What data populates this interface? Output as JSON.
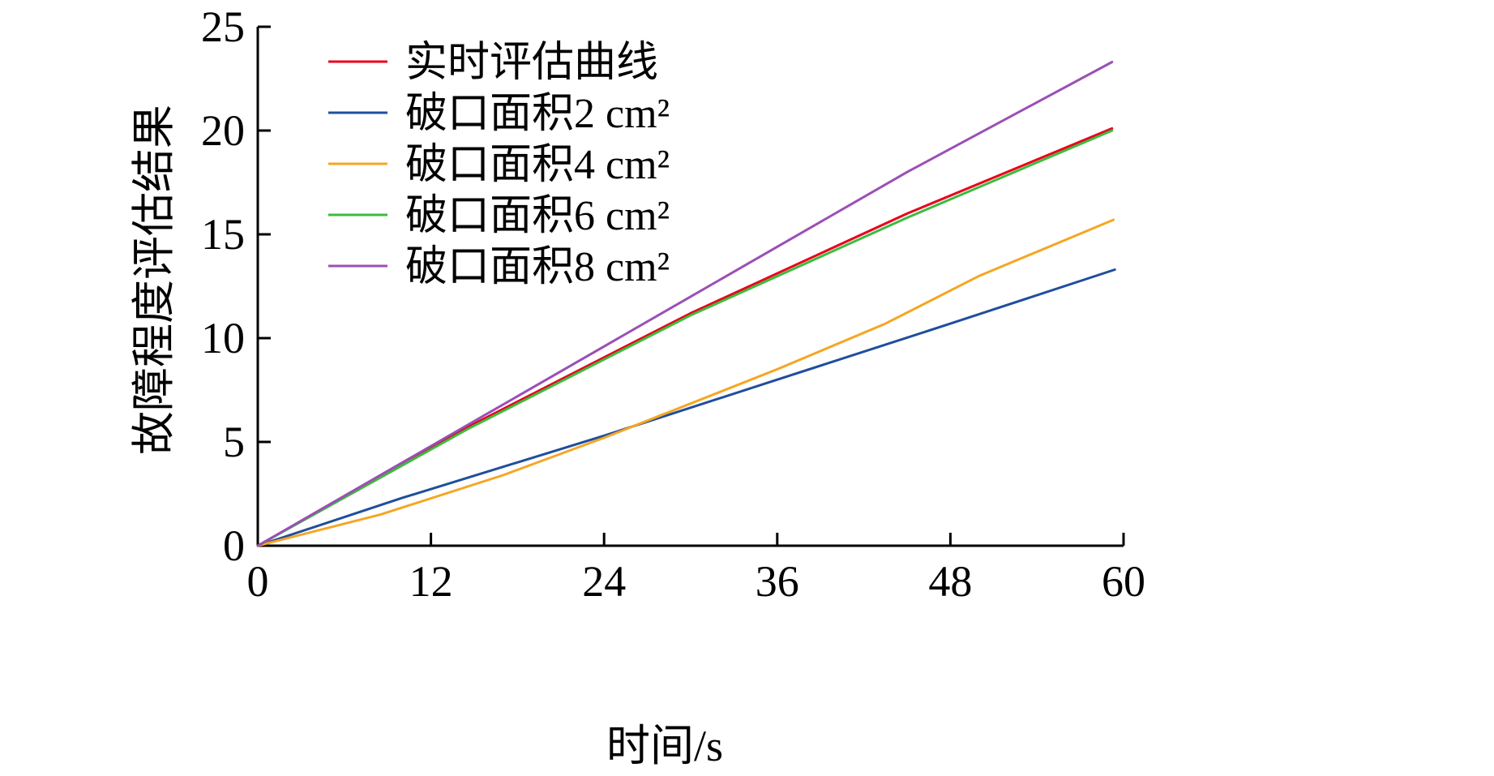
{
  "chart_data": {
    "type": "line",
    "xlabel": "时间/s",
    "ylabel": "故障程度评估结果",
    "xlim": [
      0,
      60
    ],
    "ylim": [
      0,
      25
    ],
    "xticks": [
      0,
      12,
      24,
      36,
      48,
      60
    ],
    "yticks": [
      0,
      5,
      10,
      15,
      20,
      25
    ],
    "grid": false,
    "legend_position": "top-left",
    "series": [
      {
        "name": "实时评估曲线",
        "color": "#e8001c",
        "x": [
          0,
          14.5,
          30,
          45,
          59.2
        ],
        "y": [
          0,
          5.7,
          11.2,
          16.0,
          20.1
        ]
      },
      {
        "name": "破口面积2 cm²",
        "color": "#1f4e9c",
        "x": [
          0,
          10,
          24,
          36,
          48,
          59.4
        ],
        "y": [
          0,
          2.3,
          5.3,
          8.0,
          10.7,
          13.3
        ]
      },
      {
        "name": "破口面积4 cm²",
        "color": "#f5a623",
        "x": [
          0,
          8.5,
          17,
          24,
          28,
          36,
          43.5,
          50,
          59.3
        ],
        "y": [
          0,
          1.5,
          3.4,
          5.2,
          6.3,
          8.5,
          10.7,
          13.0,
          15.7
        ]
      },
      {
        "name": "破口面积6 cm²",
        "color": "#3dbb3d",
        "x": [
          0,
          14.5,
          30,
          45,
          59.2
        ],
        "y": [
          0,
          5.6,
          11.1,
          15.8,
          20.0
        ]
      },
      {
        "name": "破口面积8 cm²",
        "color": "#9b4fb5",
        "x": [
          0,
          14.5,
          30,
          45,
          59.2
        ],
        "y": [
          0,
          5.8,
          12.0,
          18.0,
          23.3
        ]
      }
    ]
  }
}
